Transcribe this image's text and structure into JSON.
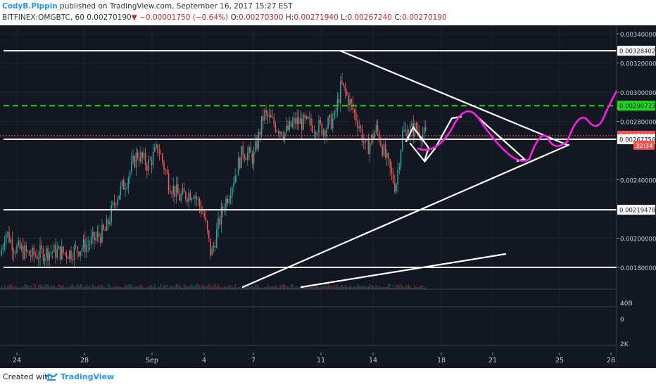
{
  "header": {
    "author": "CodyB.Pippin",
    "published": "published on TradingView.com, September 16, 2017 15:27 EST",
    "symbol": "BITFINEX:OMGBTC, 60",
    "last": "0.00270190",
    "change": "−0.00001750 (−0.64%)",
    "open_label": "O:",
    "open": "0.00270300",
    "high_label": "H:",
    "high": "0.00271940",
    "low_label": "L:",
    "low": "0.00267240",
    "close_label": "C:",
    "close": "0.00270190"
  },
  "footer": {
    "created": "Created with",
    "brand": "TradingView"
  },
  "colors": {
    "background": "#131722",
    "candle_up": "#26a69a",
    "candle_down": "#ef5350",
    "drawing": "#ffffff",
    "green_dashed": "#1ed71e",
    "projection": "#ff1ee8"
  },
  "chart_data": {
    "type": "candlestick",
    "ylim": [
      0.00175,
      0.00345
    ],
    "x_tick_labels": [
      "24",
      "28",
      "Sep",
      "4",
      "7",
      "11",
      "14",
      "18",
      "21",
      "25",
      "28"
    ],
    "y_tick_labels": [
      "0.00340000",
      "0.00320000",
      "0.00300000",
      "0.00280000",
      "0.00240000",
      "0.00200000",
      "0.00180000"
    ],
    "price_tags": [
      {
        "value": 0.00328402,
        "label": "0.00328402",
        "style": "white"
      },
      {
        "value": 0.00290733,
        "label": "0.00290733",
        "style": "green"
      },
      {
        "value": 0.0027019,
        "label": "0.00270190",
        "style": "red"
      },
      {
        "value": 0.00267758,
        "label": "0.00267758",
        "style": "white"
      },
      {
        "value": 0.00219478,
        "label": "0.00219478",
        "style": "white"
      }
    ],
    "countdown": "32:34",
    "volume_labels": [
      "40B",
      "0",
      "2K"
    ],
    "horizontal_levels": [
      0.00328402,
      0.00267758,
      0.00219478,
      0.0018
    ],
    "dashed_level": 0.00290733,
    "current_price": 0.0027019,
    "candle_path": [
      [
        0,
        0.00188
      ],
      [
        8,
        0.00205
      ],
      [
        20,
        0.00194
      ],
      [
        45,
        0.00188
      ],
      [
        70,
        0.00191
      ],
      [
        100,
        0.0019
      ],
      [
        125,
        0.00196
      ],
      [
        150,
        0.00205
      ],
      [
        165,
        0.00228
      ],
      [
        180,
        0.0024
      ],
      [
        195,
        0.00258
      ],
      [
        210,
        0.0025
      ],
      [
        225,
        0.00262
      ],
      [
        240,
        0.00238
      ],
      [
        255,
        0.00228
      ],
      [
        275,
        0.00232
      ],
      [
        290,
        0.00215
      ],
      [
        300,
        0.00188
      ],
      [
        315,
        0.00218
      ],
      [
        330,
        0.00238
      ],
      [
        345,
        0.0026
      ],
      [
        360,
        0.00255
      ],
      [
        375,
        0.00285
      ],
      [
        390,
        0.00278
      ],
      [
        405,
        0.00272
      ],
      [
        420,
        0.0028
      ],
      [
        440,
        0.00278
      ],
      [
        460,
        0.00275
      ],
      [
        475,
        0.00282
      ],
      [
        485,
        0.00305
      ],
      [
        495,
        0.00295
      ],
      [
        510,
        0.00278
      ],
      [
        520,
        0.0026
      ],
      [
        535,
        0.00275
      ],
      [
        548,
        0.00255
      ],
      [
        562,
        0.00235
      ],
      [
        572,
        0.00272
      ],
      [
        590,
        0.00275
      ],
      [
        605,
        0.0027
      ]
    ]
  }
}
